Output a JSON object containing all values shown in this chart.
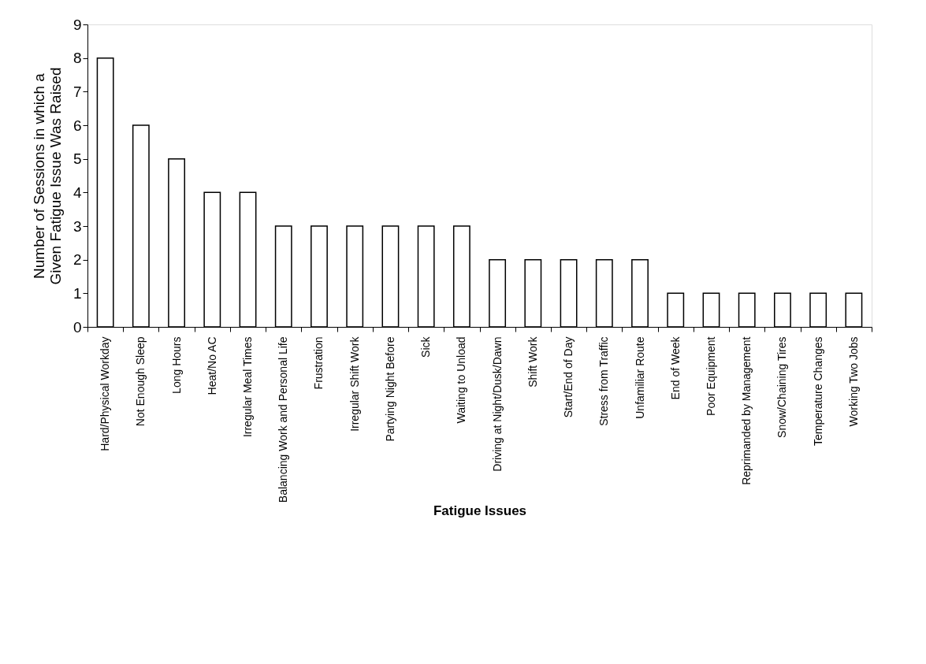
{
  "chart_data": {
    "type": "bar",
    "xlabel": "Fatigue Issues",
    "ylabel": "Number of Sessions in which a Given Fatigue Issue Was Raised",
    "categories": [
      "Hard/Physical Workday",
      "Not Enough Sleep",
      "Long Hours",
      "Heat/No AC",
      "Irregular Meal Times",
      "Balancing Work and Personal Life",
      "Frustration",
      "Irregular Shift Work",
      "Partying Night Before",
      "Sick",
      "Waiting to Unload",
      "Driving at Night/Dusk/Dawn",
      "Shift Work",
      "Start/End of Day",
      "Stress from Traffic",
      "Unfamiliar Route",
      "End of Week",
      "Poor Equipment",
      "Reprimanded by Management",
      "Snow/Chaining Tires",
      "Temperature Changes",
      "Working Two Jobs"
    ],
    "values": [
      8,
      6,
      5,
      4,
      4,
      3,
      3,
      3,
      3,
      3,
      3,
      2,
      2,
      2,
      2,
      2,
      1,
      1,
      1,
      1,
      1,
      1
    ],
    "color": "#ffffff",
    "ylim": [
      0,
      9
    ],
    "yticks": [
      0,
      1,
      2,
      3,
      4,
      5,
      6,
      7,
      8,
      9
    ],
    "grid": false
  }
}
